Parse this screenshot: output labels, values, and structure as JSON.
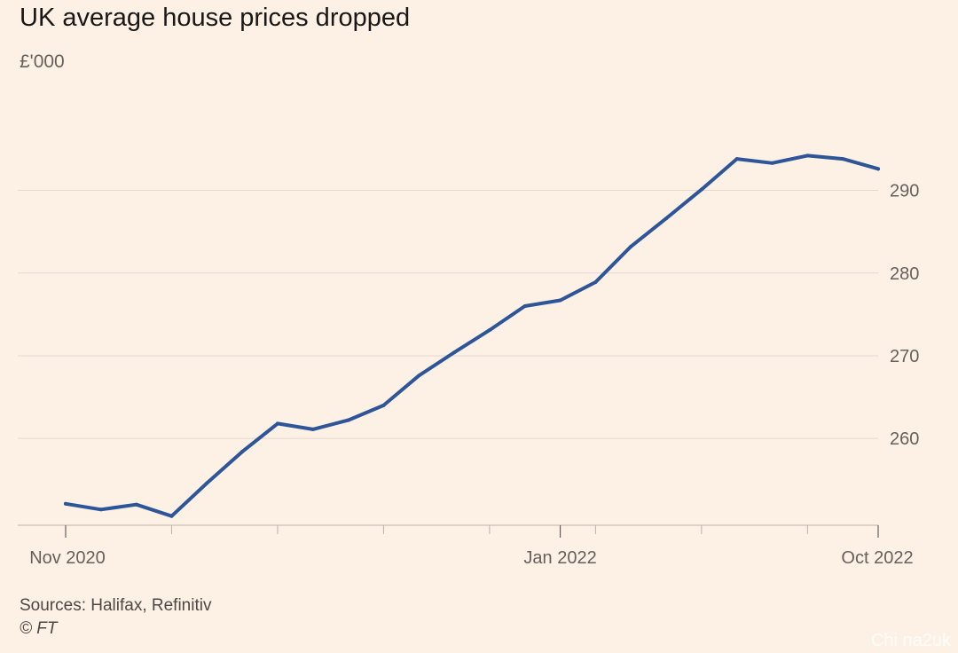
{
  "header": {
    "title": "UK average house prices dropped",
    "unit": "£'000"
  },
  "footer": {
    "sources": "Sources: Halifax, Refinitiv",
    "copyright": "© FT",
    "watermark": "Chi na2uk"
  },
  "colors": {
    "background": "#fdf1e6",
    "line": "#2d5597",
    "grid": "#e5d8cd",
    "axis": "#bdb2a8",
    "tick_label": "#66605c"
  },
  "chart_data": {
    "type": "line",
    "title": "UK average house prices dropped",
    "ylabel": "£'000",
    "xlabel": "",
    "x": [
      "Nov 2020",
      "Dec 2020",
      "Jan 2021",
      "Feb 2021",
      "Mar 2021",
      "Apr 2021",
      "May 2021",
      "Jun 2021",
      "Jul 2021",
      "Aug 2021",
      "Sep 2021",
      "Oct 2021",
      "Nov 2021",
      "Dec 2021",
      "Jan 2022",
      "Feb 2022",
      "Mar 2022",
      "Apr 2022",
      "May 2022",
      "Jun 2022",
      "Jul 2022",
      "Aug 2022",
      "Sep 2022",
      "Oct 2022"
    ],
    "series": [
      {
        "values": [
          252.1,
          251.4,
          252.0,
          250.6,
          254.6,
          258.4,
          261.8,
          261.1,
          262.2,
          264.0,
          267.6,
          270.4,
          273.1,
          276.0,
          276.7,
          278.9,
          283.2,
          286.6,
          290.1,
          293.8,
          293.3,
          294.2,
          293.8,
          292.6
        ]
      }
    ],
    "xticks": [
      "Nov 2020",
      "Jan 2022",
      "Oct 2022"
    ],
    "yticks": [
      260,
      270,
      280,
      290
    ],
    "ylim": [
      249.5,
      298
    ],
    "y_axis_position": "right",
    "grid": true
  }
}
